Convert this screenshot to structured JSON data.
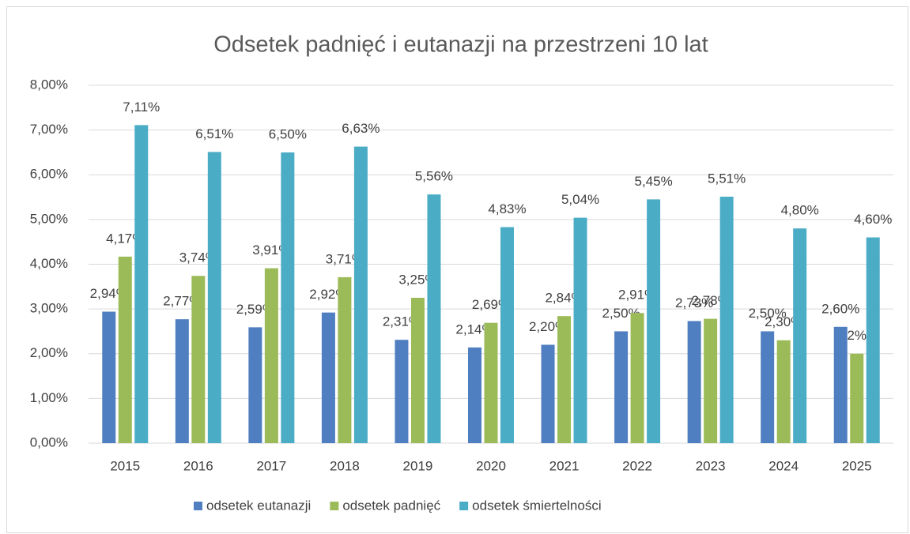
{
  "chart_data": {
    "type": "bar",
    "title": "Odsetek padnięć i eutanazji na przestrzeni 10 lat",
    "categories": [
      "2015",
      "2016",
      "2017",
      "2018",
      "2019",
      "2020",
      "2021",
      "2022",
      "2023",
      "2024",
      "2025"
    ],
    "series": [
      {
        "name": "odsetek eutanazji",
        "color": "#4f7fc0",
        "values": [
          2.94,
          2.77,
          2.59,
          2.92,
          2.31,
          2.14,
          2.2,
          2.5,
          2.73,
          2.5,
          2.6
        ],
        "value_labels": [
          "2,94%",
          "2,77%",
          "2,59%",
          "2,92%",
          "2,31%",
          "2,14%",
          "2,20%",
          "2,50%",
          "2,73%",
          "2,50%",
          "2,60%"
        ]
      },
      {
        "name": "odsetek padnięć",
        "color": "#9bbb59",
        "values": [
          4.17,
          3.74,
          3.91,
          3.71,
          3.25,
          2.69,
          2.84,
          2.91,
          2.78,
          2.3,
          2.0
        ],
        "value_labels": [
          "4,17%",
          "3,74%",
          "3,91%",
          "3,71%",
          "3,25%",
          "2,69%",
          "2,84%",
          "2,91%",
          "2,78%",
          "2,30%",
          "2%"
        ]
      },
      {
        "name": "odsetek śmiertelności",
        "color": "#4bacc6",
        "values": [
          7.11,
          6.51,
          6.5,
          6.63,
          5.56,
          4.83,
          5.04,
          5.45,
          5.51,
          4.8,
          4.6
        ],
        "value_labels": [
          "7,11%",
          "6,51%",
          "6,50%",
          "6,63%",
          "5,56%",
          "4,83%",
          "5,04%",
          "5,45%",
          "5,51%",
          "4,80%",
          "4,60%"
        ]
      }
    ],
    "ylim": [
      0,
      8
    ],
    "yticks": [
      {
        "value": 0,
        "label": "0,00%"
      },
      {
        "value": 1,
        "label": "1,00%"
      },
      {
        "value": 2,
        "label": "2,00%"
      },
      {
        "value": 3,
        "label": "3,00%"
      },
      {
        "value": 4,
        "label": "4,00%"
      },
      {
        "value": 5,
        "label": "5,00%"
      },
      {
        "value": 6,
        "label": "6,00%"
      },
      {
        "value": 7,
        "label": "7,00%"
      },
      {
        "value": 8,
        "label": "8,00%"
      }
    ],
    "grid": true,
    "legend": "bottom"
  }
}
